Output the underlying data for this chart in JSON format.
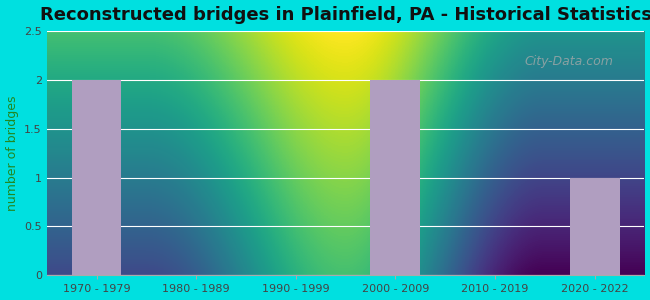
{
  "title": "Reconstructed bridges in Plainfield, PA - Historical Statistics",
  "categories": [
    "1970 - 1979",
    "1980 - 1989",
    "1990 - 1999",
    "2000 - 2009",
    "2010 - 2019",
    "2020 - 2022"
  ],
  "values": [
    2,
    0,
    0,
    2,
    0,
    1
  ],
  "bar_color": "#b09ec0",
  "ylabel": "number of bridges",
  "ylim": [
    0,
    2.5
  ],
  "yticks": [
    0,
    0.5,
    1,
    1.5,
    2,
    2.5
  ],
  "background_outer": "#00e0e0",
  "background_inner_top": "#f5fdf0",
  "background_inner_bottom": "#e8f5e2",
  "title_fontsize": 13,
  "ylabel_fontsize": 9,
  "tick_fontsize": 8,
  "watermark_text": "City-Data.com"
}
